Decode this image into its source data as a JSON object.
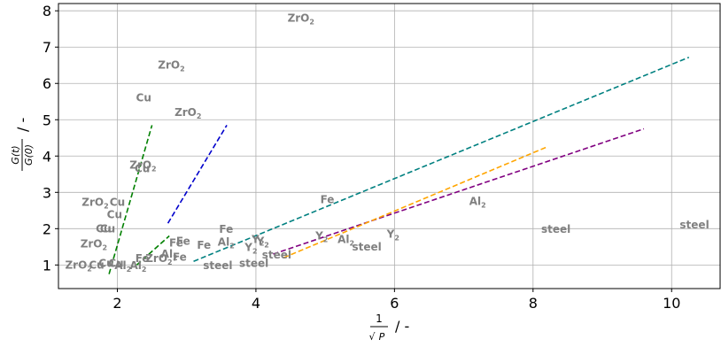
{
  "chart_data": {
    "type": "scatter",
    "title": "",
    "xlabel": {
      "frac_num": "1",
      "frac_den_root": "√",
      "frac_den_var": "P",
      "unit": "/ -"
    },
    "ylabel": {
      "frac_num": "G(t)",
      "frac_den": "G(0)",
      "unit": "/ -"
    },
    "xlim": [
      1.15,
      10.7
    ],
    "ylim": [
      0.35,
      8.2
    ],
    "grid": true,
    "xticks": [
      "2",
      "4",
      "6",
      "8",
      "10"
    ],
    "xtick_values": [
      2,
      4,
      6,
      8,
      10
    ],
    "yticks": [
      "1",
      "2",
      "3",
      "4",
      "5",
      "6",
      "7",
      "8"
    ],
    "ytick_values": [
      1,
      2,
      3,
      4,
      5,
      6,
      7,
      8
    ],
    "series": [
      {
        "color": "#008000",
        "style": "dashed",
        "x": [
          1.88,
          2.5
        ],
        "y": [
          0.75,
          4.85
        ]
      },
      {
        "color": "#0000cc",
        "style": "dashed",
        "x": [
          2.73,
          3.58
        ],
        "y": [
          2.15,
          4.85
        ]
      },
      {
        "color": "#008080",
        "style": "dashed",
        "x": [
          3.1,
          10.25
        ],
        "y": [
          1.1,
          6.72
        ]
      },
      {
        "color": "#800080",
        "style": "dashed",
        "x": [
          4.25,
          9.6
        ],
        "y": [
          1.3,
          4.75
        ]
      },
      {
        "color": "#ffa500",
        "style": "dashed",
        "x": [
          4.4,
          8.2
        ],
        "y": [
          1.2,
          4.25
        ]
      },
      {
        "color": "#008000",
        "style": "dashed",
        "x": [
          2.28,
          2.75
        ],
        "y": [
          1.0,
          1.8
        ]
      }
    ],
    "annotations": [
      {
        "text": "ZrO",
        "sub": "2",
        "x": 4.65,
        "y": 7.8
      },
      {
        "text": "ZrO",
        "sub": "2",
        "x": 2.78,
        "y": 6.5
      },
      {
        "text": "Cu",
        "sub": "",
        "x": 2.38,
        "y": 5.6
      },
      {
        "text": "ZrO",
        "sub": "2",
        "x": 3.02,
        "y": 5.2
      },
      {
        "text": "ZrO",
        "sub": "2",
        "x": 2.37,
        "y": 3.75
      },
      {
        "text": "Cu",
        "sub": "",
        "x": 2.36,
        "y": 3.65
      },
      {
        "text": "ZrO",
        "sub": "2",
        "x": 1.68,
        "y": 2.73
      },
      {
        "text": "Cu",
        "sub": "",
        "x": 2.0,
        "y": 2.73
      },
      {
        "text": "Cu",
        "sub": "",
        "x": 1.96,
        "y": 2.38
      },
      {
        "text": "Cu",
        "sub": "",
        "x": 1.8,
        "y": 2.0
      },
      {
        "text": "Cu",
        "sub": "",
        "x": 1.86,
        "y": 2.0
      },
      {
        "text": "ZrO",
        "sub": "2",
        "x": 1.66,
        "y": 1.58
      },
      {
        "text": "ZrO",
        "sub": "2",
        "x": 1.44,
        "y": 1.0
      },
      {
        "text": "Cu",
        "sub": "",
        "x": 1.7,
        "y": 1.0
      },
      {
        "text": "Cu",
        "sub": "",
        "x": 1.84,
        "y": 1.04
      },
      {
        "text": "Cu",
        "sub": "",
        "x": 1.98,
        "y": 1.04
      },
      {
        "text": "Al",
        "sub": "2",
        "x": 2.08,
        "y": 0.98
      },
      {
        "text": "Al",
        "sub": "2",
        "x": 2.3,
        "y": 0.98
      },
      {
        "text": "Fe",
        "sub": "",
        "x": 2.36,
        "y": 1.18
      },
      {
        "text": "ZrO",
        "sub": "2",
        "x": 2.6,
        "y": 1.18
      },
      {
        "text": "Al",
        "sub": "2",
        "x": 2.75,
        "y": 1.3
      },
      {
        "text": "Fe",
        "sub": "",
        "x": 2.9,
        "y": 1.22
      },
      {
        "text": "Fe",
        "sub": "",
        "x": 2.85,
        "y": 1.6
      },
      {
        "text": "Fe",
        "sub": "",
        "x": 2.95,
        "y": 1.65
      },
      {
        "text": "Fe",
        "sub": "",
        "x": 3.25,
        "y": 1.55
      },
      {
        "text": "Fe",
        "sub": "",
        "x": 3.57,
        "y": 1.98
      },
      {
        "text": "Al",
        "sub": "2",
        "x": 3.57,
        "y": 1.63
      },
      {
        "text": "Y",
        "sub": "2",
        "x": 3.93,
        "y": 1.48
      },
      {
        "text": "Y",
        "sub": "2",
        "x": 4.03,
        "y": 1.7
      },
      {
        "text": "Y",
        "sub": "2",
        "x": 4.1,
        "y": 1.65
      },
      {
        "text": "Y",
        "sub": "2",
        "x": 4.95,
        "y": 1.8
      },
      {
        "text": "Al",
        "sub": "2",
        "x": 5.3,
        "y": 1.7
      },
      {
        "text": "Y",
        "sub": "2",
        "x": 5.98,
        "y": 1.85
      },
      {
        "text": "Fe",
        "sub": "",
        "x": 5.03,
        "y": 2.8
      },
      {
        "text": "Al",
        "sub": "2",
        "x": 7.2,
        "y": 2.75
      },
      {
        "text": "steel",
        "sub": "",
        "x": 4.3,
        "y": 1.28
      },
      {
        "text": "steel",
        "sub": "",
        "x": 5.6,
        "y": 1.5
      },
      {
        "text": "steel",
        "sub": "",
        "x": 3.45,
        "y": 0.98
      },
      {
        "text": "steel",
        "sub": "",
        "x": 3.97,
        "y": 1.05
      },
      {
        "text": "steel",
        "sub": "",
        "x": 8.33,
        "y": 1.98
      },
      {
        "text": "steel",
        "sub": "",
        "x": 10.33,
        "y": 2.1
      }
    ]
  }
}
